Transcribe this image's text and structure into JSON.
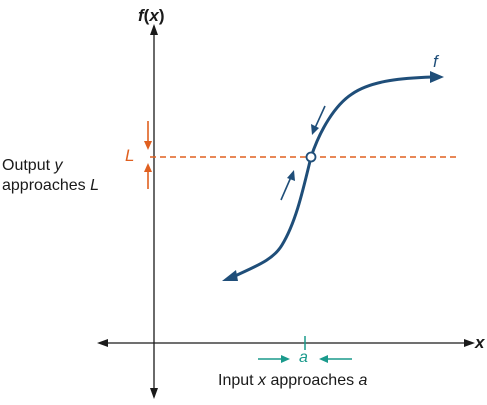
{
  "axes": {
    "y_label_f": "f",
    "y_label_open": "(",
    "y_label_x": "x",
    "y_label_close": ")",
    "x_label": "x"
  },
  "curve": {
    "label": "f",
    "color": "#1f4e79"
  },
  "limit": {
    "value_label": "L",
    "color": "#e06020"
  },
  "point": {
    "a_label": "a",
    "color": "#1a9a8c"
  },
  "captions": {
    "output_line1_word": "Output ",
    "output_line1_var": "y",
    "output_line2_word": "approaches ",
    "output_line2_var": "L",
    "input_word1": "Input ",
    "input_var": "x",
    "input_word2": " approaches ",
    "input_a": "a"
  }
}
